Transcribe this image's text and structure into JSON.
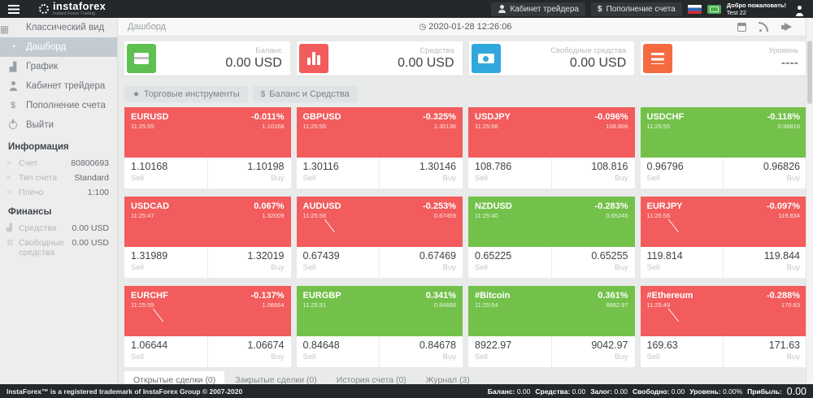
{
  "colors": {
    "dark": "#24282b",
    "tile-red": "#f25c5c",
    "tile-green": "#73c14a",
    "stat-green": "#5fc052",
    "stat-red": "#f25c5c",
    "stat-blue": "#31a8dd",
    "stat-orange": "#f56b41"
  },
  "icons": {
    "star": "★",
    "usd": "$",
    "clock": "◷"
  },
  "header": {
    "logo": "instaforex",
    "logo_sub": "Instant Forex Trading",
    "cabinet": "Кабинет трейдера",
    "deposit": "Пополнение счета",
    "welcome1": "Добро пожаловать!",
    "welcome2": "Test 22"
  },
  "sidebar": {
    "items": [
      {
        "label": "Классический вид",
        "icon": "grid",
        "state": ""
      },
      {
        "label": "Дашборд",
        "icon": "dash",
        "state": "active"
      },
      {
        "label": "График",
        "icon": "chart",
        "state": ""
      },
      {
        "label": "Кабинет трейдера",
        "icon": "user",
        "state": ""
      },
      {
        "label": "Пополнение счета",
        "icon": "usd",
        "state": ""
      },
      {
        "label": "Выйти",
        "icon": "power",
        "state": ""
      }
    ],
    "info_header": "Информация",
    "info": [
      {
        "label": "Счет",
        "value": "80800693",
        "icon": "chev"
      },
      {
        "label": "Тип счета",
        "value": "Standard",
        "icon": "chev"
      },
      {
        "label": "Плечо",
        "value": "1:100",
        "icon": "chev"
      }
    ],
    "finance_header": "Финансы",
    "finance": [
      {
        "label": "Средства",
        "value": "0.00 USD",
        "icon": "chartg"
      },
      {
        "label": "Свободные средства",
        "value": "0.00 USD",
        "icon": "wallet"
      }
    ]
  },
  "topbar": {
    "breadcrumb": "Дашборд",
    "datetime": "2020-01-28 12:26:06"
  },
  "stats": [
    {
      "label": "Баланс",
      "value": "0.00 USD",
      "tone": "green",
      "icon": "card"
    },
    {
      "label": "Средства",
      "value": "0.00 USD",
      "tone": "red",
      "icon": "bars"
    },
    {
      "label": "Свободные средства",
      "value": "0.00 USD",
      "tone": "blue",
      "icon": "money"
    },
    {
      "label": "Уровень",
      "value": "----",
      "tone": "orange",
      "icon": "list"
    }
  ],
  "toolbar": {
    "instruments": "Торговые инструменты",
    "balance": "Баланс и Средства"
  },
  "labels": {
    "sell": "Sell",
    "buy": "Buy"
  },
  "tiles": [
    {
      "symbol": "EURUSD",
      "time": "11:25:55",
      "change": "-0.011%",
      "last": "1.10168",
      "sell": "1.10168",
      "buy": "1.10198",
      "color": "red",
      "spark": false
    },
    {
      "symbol": "GBPUSD",
      "time": "11:25:55",
      "change": "-0.325%",
      "last": "1.30136",
      "sell": "1.30116",
      "buy": "1.30146",
      "color": "red",
      "spark": false
    },
    {
      "symbol": "USDJPY",
      "time": "11:25:56",
      "change": "-0.096%",
      "last": "108.806",
      "sell": "108.786",
      "buy": "108.816",
      "color": "red",
      "spark": false
    },
    {
      "symbol": "USDCHF",
      "time": "11:25:55",
      "change": "-0.118%",
      "last": "0.96816",
      "sell": "0.96796",
      "buy": "0.96826",
      "color": "green",
      "spark": false
    },
    {
      "symbol": "USDCAD",
      "time": "11:25:47",
      "change": "0.067%",
      "last": "1.32009",
      "sell": "1.31989",
      "buy": "1.32019",
      "color": "red",
      "spark": false
    },
    {
      "symbol": "AUDUSD",
      "time": "11:25:56",
      "change": "-0.253%",
      "last": "0.67459",
      "sell": "0.67439",
      "buy": "0.67469",
      "color": "red",
      "spark": true
    },
    {
      "symbol": "NZDUSD",
      "time": "11:25:40",
      "change": "-0.283%",
      "last": "0.65245",
      "sell": "0.65225",
      "buy": "0.65255",
      "color": "green",
      "spark": false
    },
    {
      "symbol": "EURJPY",
      "time": "11:25:56",
      "change": "-0.097%",
      "last": "119.834",
      "sell": "119.814",
      "buy": "119.844",
      "color": "red",
      "spark": true
    },
    {
      "symbol": "EURCHF",
      "time": "11:25:55",
      "change": "-0.137%",
      "last": "1.06664",
      "sell": "1.06644",
      "buy": "1.06674",
      "color": "red",
      "spark": true
    },
    {
      "symbol": "EURGBP",
      "time": "11:25:31",
      "change": "0.341%",
      "last": "0.84668",
      "sell": "0.84648",
      "buy": "0.84678",
      "color": "green",
      "spark": false
    },
    {
      "symbol": "#Bitcoin",
      "time": "11:25:54",
      "change": "0.361%",
      "last": "8982.97",
      "sell": "8922.97",
      "buy": "9042.97",
      "color": "green",
      "spark": false
    },
    {
      "symbol": "#Ethereum",
      "time": "11:25:49",
      "change": "-0.288%",
      "last": "170.63",
      "sell": "169.63",
      "buy": "171.63",
      "color": "red",
      "spark": true
    }
  ],
  "tabs": [
    {
      "label": "Открытые сделки (0)",
      "state": "active"
    },
    {
      "label": "Закрытые сделки (0)",
      "state": ""
    },
    {
      "label": "История счета (0)",
      "state": ""
    },
    {
      "label": "Журнал (3)",
      "state": ""
    }
  ],
  "footer": {
    "left": "InstaForex™ is a registered trademark of InstaForex Group © 2007-2020",
    "stats": [
      {
        "label": "Баланс:",
        "value": "0.00"
      },
      {
        "label": "Средства:",
        "value": "0.00"
      },
      {
        "label": "Залог:",
        "value": "0.00"
      },
      {
        "label": "Свободно:",
        "value": "0.00"
      },
      {
        "label": "Уровень:",
        "value": "0.00%"
      }
    ],
    "profit_label": "Прибыль:",
    "profit": "0.00"
  }
}
